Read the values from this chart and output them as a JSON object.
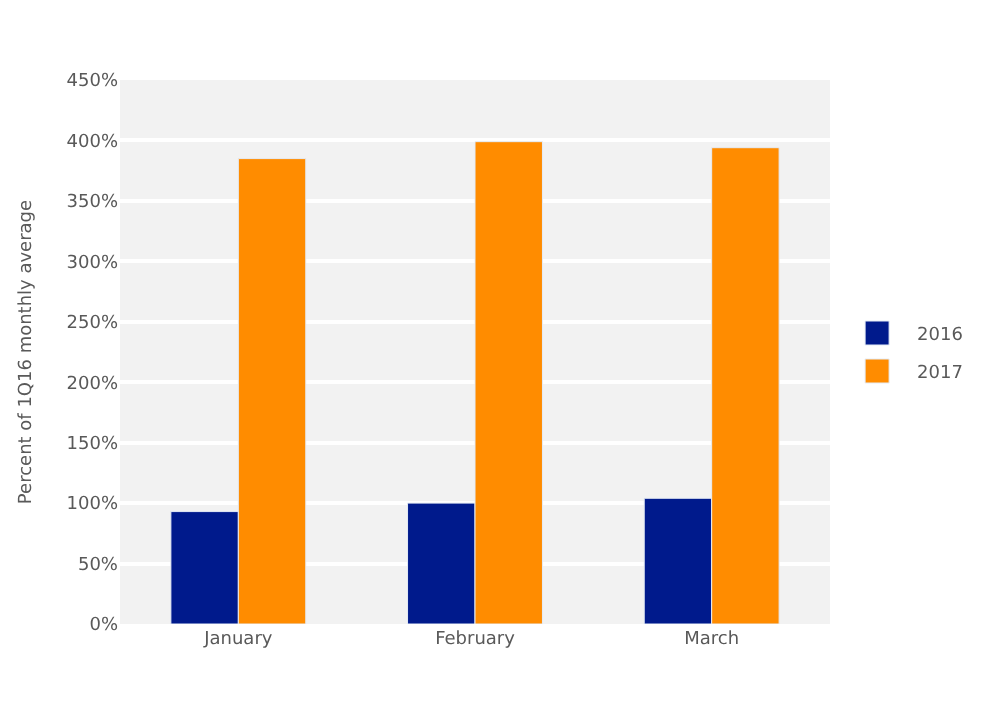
{
  "chart_data": {
    "type": "bar",
    "ylabel": "Percent of 1Q16 monthly average",
    "categories": [
      "January",
      "February",
      "March"
    ],
    "series": [
      {
        "name": "2016",
        "color": "#001a8c",
        "values": [
          93,
          100,
          104
        ]
      },
      {
        "name": "2017",
        "color": "#ff8c00",
        "values": [
          385,
          399,
          394
        ]
      }
    ],
    "ylim": [
      0,
      450
    ],
    "yticks": [
      {
        "value": 0,
        "label": "0%"
      },
      {
        "value": 50,
        "label": "50%"
      },
      {
        "value": 100,
        "label": "100%"
      },
      {
        "value": 150,
        "label": "150%"
      },
      {
        "value": 200,
        "label": "200%"
      },
      {
        "value": 250,
        "label": "250%"
      },
      {
        "value": 300,
        "label": "300%"
      },
      {
        "value": 350,
        "label": "350%"
      },
      {
        "value": 400,
        "label": "400%"
      },
      {
        "value": 450,
        "label": "450%"
      }
    ],
    "grid": "y",
    "legend": "right"
  }
}
